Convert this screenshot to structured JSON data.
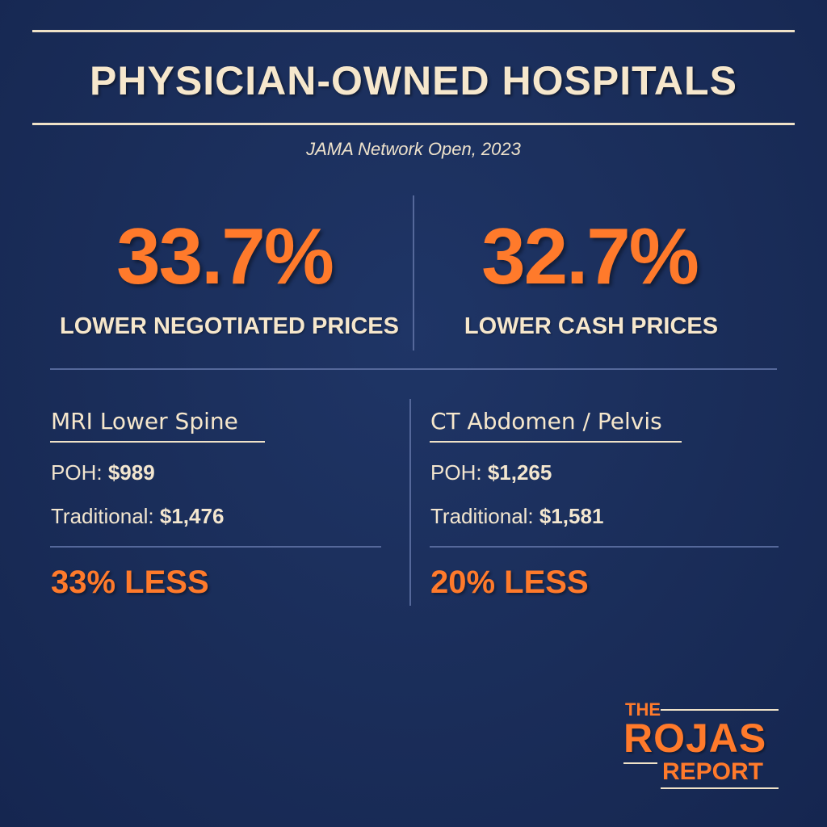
{
  "header": {
    "title": "PHYSICIAN-OWNED HOSPITALS",
    "source": "JAMA Network Open, 2023"
  },
  "stats": [
    {
      "value": "33.7%",
      "label": "LOWER NEGOTIATED PRICES"
    },
    {
      "value": "32.7%",
      "label": "LOWER CASH PRICES"
    }
  ],
  "cards": [
    {
      "heading": "MRI Lower Spine",
      "poh_label": "POH:",
      "poh_value": "$989",
      "trad_label": "Traditional:",
      "trad_value": "$1,476",
      "difference": "33% LESS"
    },
    {
      "heading": "CT Abdomen / Pelvis",
      "poh_label": "POH:",
      "poh_value": "$1,265",
      "trad_label": "Traditional:",
      "trad_value": "$1,581",
      "difference": "20% LESS"
    }
  ],
  "logo": {
    "line1": "THE",
    "line2": "ROJAS",
    "line3": "REPORT"
  },
  "colors": {
    "background": "#1a2d59",
    "accent": "#ff7a2b",
    "text": "#f6e7cc"
  }
}
